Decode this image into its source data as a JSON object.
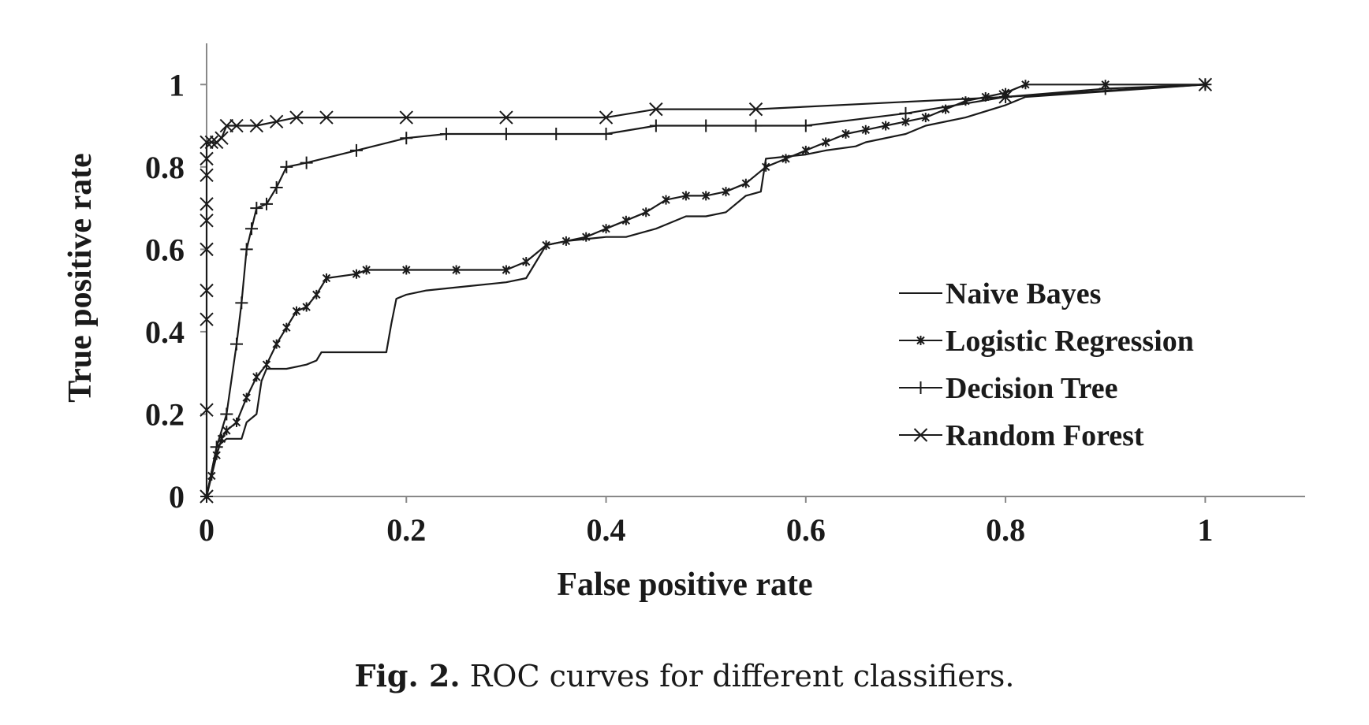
{
  "chart_data": {
    "type": "line",
    "xlabel": "False positive rate",
    "ylabel": "True positive rate",
    "xlim": [
      0,
      1.1
    ],
    "ylim": [
      0,
      1.1
    ],
    "xticks": [
      "0",
      "0.2",
      "0.4",
      "0.6",
      "0.8",
      "1"
    ],
    "yticks": [
      "0",
      "0.2",
      "0.4",
      "0.6",
      "0.8",
      "1"
    ],
    "grid": false,
    "legend_position": "right-middle",
    "series": [
      {
        "name": "Naive Bayes",
        "marker": "none",
        "x": [
          0,
          0.005,
          0.01,
          0.02,
          0.035,
          0.04,
          0.05,
          0.055,
          0.06,
          0.07,
          0.08,
          0.1,
          0.11,
          0.115,
          0.13,
          0.18,
          0.185,
          0.19,
          0.2,
          0.22,
          0.26,
          0.3,
          0.32,
          0.34,
          0.36,
          0.4,
          0.42,
          0.45,
          0.46,
          0.48,
          0.5,
          0.52,
          0.54,
          0.555,
          0.56,
          0.6,
          0.62,
          0.65,
          0.66,
          0.7,
          0.72,
          0.76,
          0.8,
          0.82,
          1.0
        ],
        "y": [
          0,
          0.06,
          0.12,
          0.14,
          0.14,
          0.18,
          0.2,
          0.28,
          0.31,
          0.31,
          0.31,
          0.32,
          0.33,
          0.35,
          0.35,
          0.35,
          0.42,
          0.48,
          0.49,
          0.5,
          0.51,
          0.52,
          0.53,
          0.61,
          0.62,
          0.63,
          0.63,
          0.65,
          0.66,
          0.68,
          0.68,
          0.69,
          0.73,
          0.74,
          0.82,
          0.83,
          0.84,
          0.85,
          0.86,
          0.88,
          0.9,
          0.92,
          0.95,
          0.97,
          1.0
        ]
      },
      {
        "name": "Logistic Regression",
        "marker": "asterisk",
        "x": [
          0,
          0.005,
          0.01,
          0.015,
          0.02,
          0.03,
          0.04,
          0.05,
          0.06,
          0.07,
          0.08,
          0.09,
          0.1,
          0.11,
          0.12,
          0.15,
          0.16,
          0.2,
          0.25,
          0.3,
          0.32,
          0.34,
          0.36,
          0.38,
          0.4,
          0.42,
          0.44,
          0.46,
          0.48,
          0.5,
          0.52,
          0.54,
          0.56,
          0.58,
          0.6,
          0.62,
          0.64,
          0.66,
          0.68,
          0.7,
          0.72,
          0.74,
          0.76,
          0.78,
          0.8,
          0.82,
          0.9,
          1.0
        ],
        "y": [
          0,
          0.05,
          0.1,
          0.14,
          0.16,
          0.18,
          0.24,
          0.29,
          0.32,
          0.37,
          0.41,
          0.45,
          0.46,
          0.49,
          0.53,
          0.54,
          0.55,
          0.55,
          0.55,
          0.55,
          0.57,
          0.61,
          0.62,
          0.63,
          0.65,
          0.67,
          0.69,
          0.72,
          0.73,
          0.73,
          0.74,
          0.76,
          0.8,
          0.82,
          0.84,
          0.86,
          0.88,
          0.89,
          0.9,
          0.91,
          0.92,
          0.94,
          0.96,
          0.97,
          0.98,
          1.0,
          1.0,
          1.0
        ]
      },
      {
        "name": "Decision Tree",
        "marker": "plus",
        "x": [
          0,
          0.01,
          0.02,
          0.03,
          0.035,
          0.04,
          0.045,
          0.05,
          0.06,
          0.07,
          0.08,
          0.1,
          0.15,
          0.2,
          0.24,
          0.3,
          0.35,
          0.4,
          0.45,
          0.5,
          0.55,
          0.6,
          0.7,
          0.8,
          0.9,
          1.0
        ],
        "y": [
          0,
          0.12,
          0.2,
          0.37,
          0.47,
          0.6,
          0.65,
          0.7,
          0.71,
          0.75,
          0.8,
          0.81,
          0.84,
          0.87,
          0.88,
          0.88,
          0.88,
          0.88,
          0.9,
          0.9,
          0.9,
          0.9,
          0.93,
          0.97,
          0.99,
          1.0
        ]
      },
      {
        "name": "Random Forest",
        "marker": "x",
        "x": [
          0,
          0,
          0,
          0,
          0,
          0,
          0,
          0,
          0,
          0,
          0.005,
          0.01,
          0.015,
          0.02,
          0.03,
          0.05,
          0.07,
          0.09,
          0.12,
          0.2,
          0.3,
          0.4,
          0.45,
          0.55,
          0.8,
          1.0
        ],
        "y": [
          0,
          0.21,
          0.43,
          0.5,
          0.6,
          0.67,
          0.71,
          0.78,
          0.82,
          0.86,
          0.86,
          0.86,
          0.87,
          0.9,
          0.9,
          0.9,
          0.91,
          0.92,
          0.92,
          0.92,
          0.92,
          0.92,
          0.94,
          0.94,
          0.97,
          1.0
        ]
      }
    ]
  },
  "caption": {
    "label": "Fig. 2.",
    "text": "ROC curves for different classifiers."
  }
}
